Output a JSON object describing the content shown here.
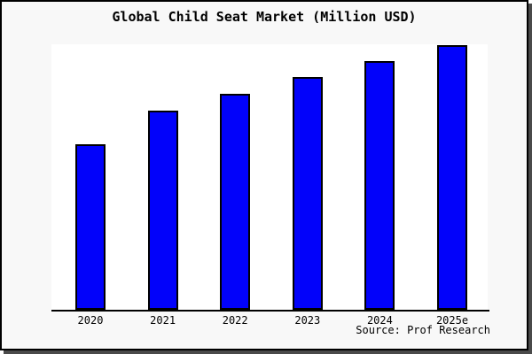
{
  "figure": {
    "title": "Global Child Seat Market (Million USD)",
    "source_credit": "Source: Prof Research"
  },
  "colors": {
    "bar_fill": "#0202fa",
    "bar_edge": "#000000",
    "figure_background": "#f8f8f8",
    "plot_background": "#ffffff",
    "frame_border": "#000000",
    "frame_shadow": "#4a4a4a",
    "axis_line": "#000000",
    "text": "#000000"
  },
  "chart_data": {
    "type": "bar",
    "title": "Global Child Seat Market (Million USD)",
    "categories": [
      "2020",
      "2021",
      "2022",
      "2023",
      "2024",
      "2025e"
    ],
    "values": [
      62.5,
      75.3,
      81.6,
      88.0,
      94.0,
      100.0
    ],
    "values_unit": "relative bar height, percent of tallest bar (2025e); y-axis has no visible scale or tick labels",
    "xlabel": "",
    "ylabel": "",
    "ylim": [
      0,
      100.3
    ],
    "grid": false,
    "legend": false,
    "y_axis_visible": false,
    "annotations": [
      "Source: Prof Research"
    ]
  }
}
